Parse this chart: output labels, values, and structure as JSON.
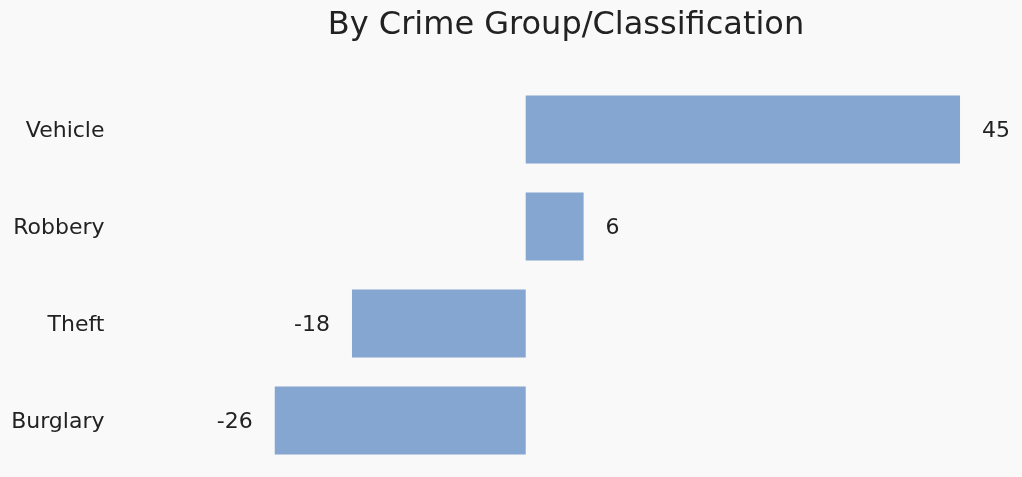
{
  "chart_data": {
    "type": "bar",
    "orientation": "horizontal",
    "title": "By Crime Group/Classification",
    "categories": [
      "Vehicle",
      "Robbery",
      "Theft",
      "Burglary"
    ],
    "values": [
      45,
      6,
      -18,
      -26
    ],
    "color": "#84a6d0",
    "data_labels": true
  }
}
